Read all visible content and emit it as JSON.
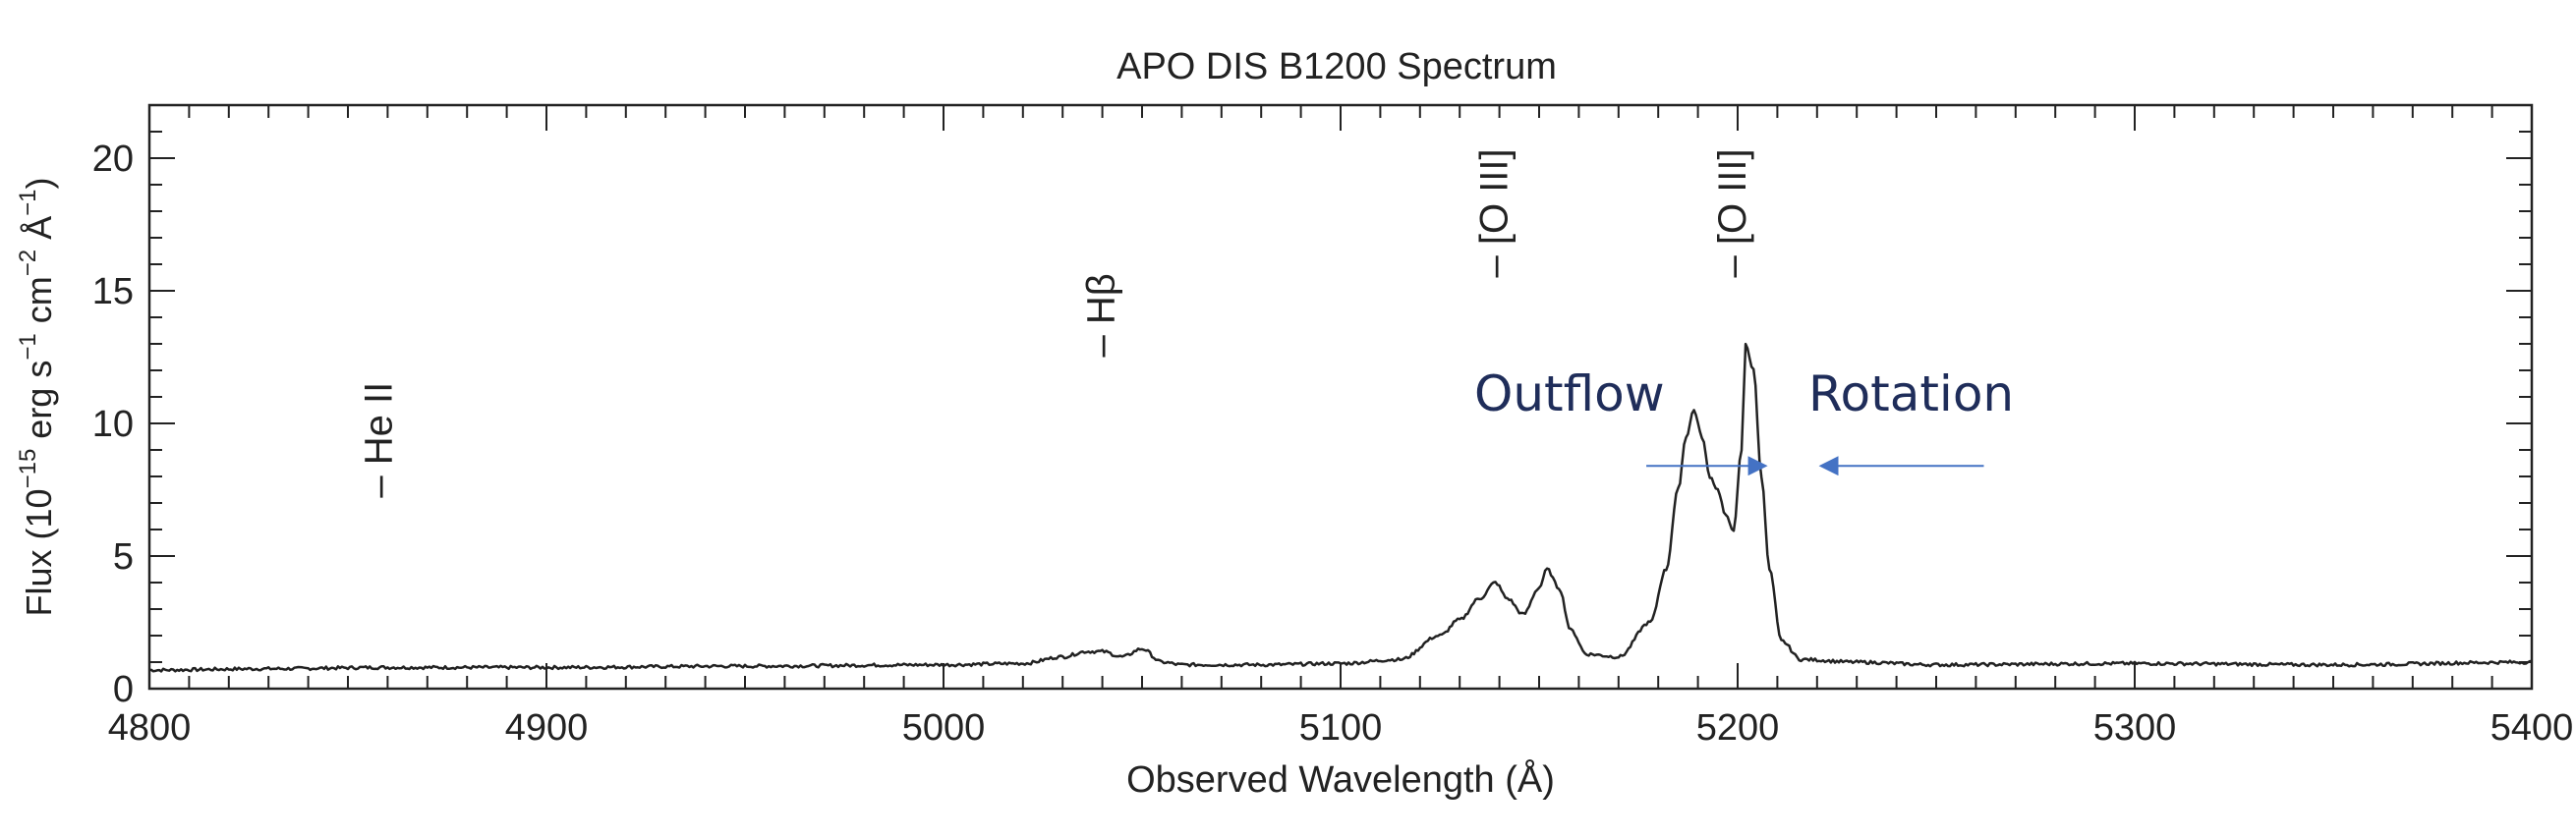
{
  "chart_data": {
    "type": "line",
    "title": "APO DIS B1200 Spectrum",
    "xlabel": "Observed Wavelength (Å)",
    "ylabel": {
      "prefix": "Flux (10",
      "exp1": "−15",
      "middle1": " erg s",
      "exp2": "−1",
      "middle2": " cm",
      "exp3": "−2",
      "middle3": " Å",
      "exp4": "−1",
      "suffix": ")"
    },
    "xlim": [
      4800,
      5400
    ],
    "ylim": [
      0,
      22
    ],
    "xticks": [
      4800,
      4900,
      5000,
      5100,
      5200,
      5300,
      5400
    ],
    "xtick_labels": [
      "4800",
      "4900",
      "5000",
      "5100",
      "5200",
      "5300",
      "5400"
    ],
    "yticks": [
      0,
      5,
      10,
      15,
      20
    ],
    "ytick_labels": [
      "0",
      "5",
      "10",
      "15",
      "20"
    ],
    "grid": false,
    "line_color": "#222222",
    "series": [
      {
        "x": [
          4800,
          4830,
          4860,
          4900,
          4950,
          5000,
          5020,
          5030,
          5036,
          5040,
          5045,
          5050,
          5055,
          5060,
          5080,
          5100,
          5115,
          5125,
          5130,
          5135,
          5139,
          5142,
          5146,
          5150,
          5152,
          5155,
          5158,
          5162,
          5170,
          5178,
          5182,
          5185,
          5187,
          5189,
          5191,
          5193,
          5195,
          5197,
          5199,
          5201,
          5202,
          5204,
          5206,
          5208,
          5211,
          5216,
          5230,
          5250,
          5300,
          5350,
          5400
        ],
        "y": [
          0.7,
          0.75,
          0.8,
          0.8,
          0.85,
          0.9,
          0.95,
          1.2,
          1.4,
          1.4,
          1.2,
          1.5,
          1.0,
          0.9,
          0.9,
          0.95,
          1.1,
          2.0,
          2.6,
          3.4,
          4.0,
          3.4,
          2.8,
          3.8,
          4.5,
          3.8,
          2.2,
          1.3,
          1.2,
          2.5,
          4.5,
          7.5,
          9.5,
          10.5,
          9.5,
          8.0,
          7.5,
          6.5,
          6.0,
          9.0,
          13.0,
          12.0,
          8.0,
          4.5,
          1.8,
          1.1,
          1.0,
          0.9,
          0.95,
          0.9,
          1.0
        ]
      }
    ],
    "line_labels": [
      {
        "text": "– He II",
        "x": 4858
      },
      {
        "text": "– Hβ",
        "x": 5040
      },
      {
        "text": "– [O III]",
        "x": 5139
      },
      {
        "text": "– [O III]",
        "x": 5199
      }
    ],
    "annotations": [
      {
        "text": "Outflow",
        "color": "#1f2d5a",
        "arrow_from": 5177,
        "arrow_to": 5214,
        "arrow_y": 8.4,
        "arrow_color": "#4472c4"
      },
      {
        "text": "Rotation",
        "color": "#1f2d5a",
        "arrow_from": 5262,
        "arrow_to": 5214,
        "arrow_y": 8.4,
        "arrow_color": "#4472c4"
      }
    ]
  }
}
